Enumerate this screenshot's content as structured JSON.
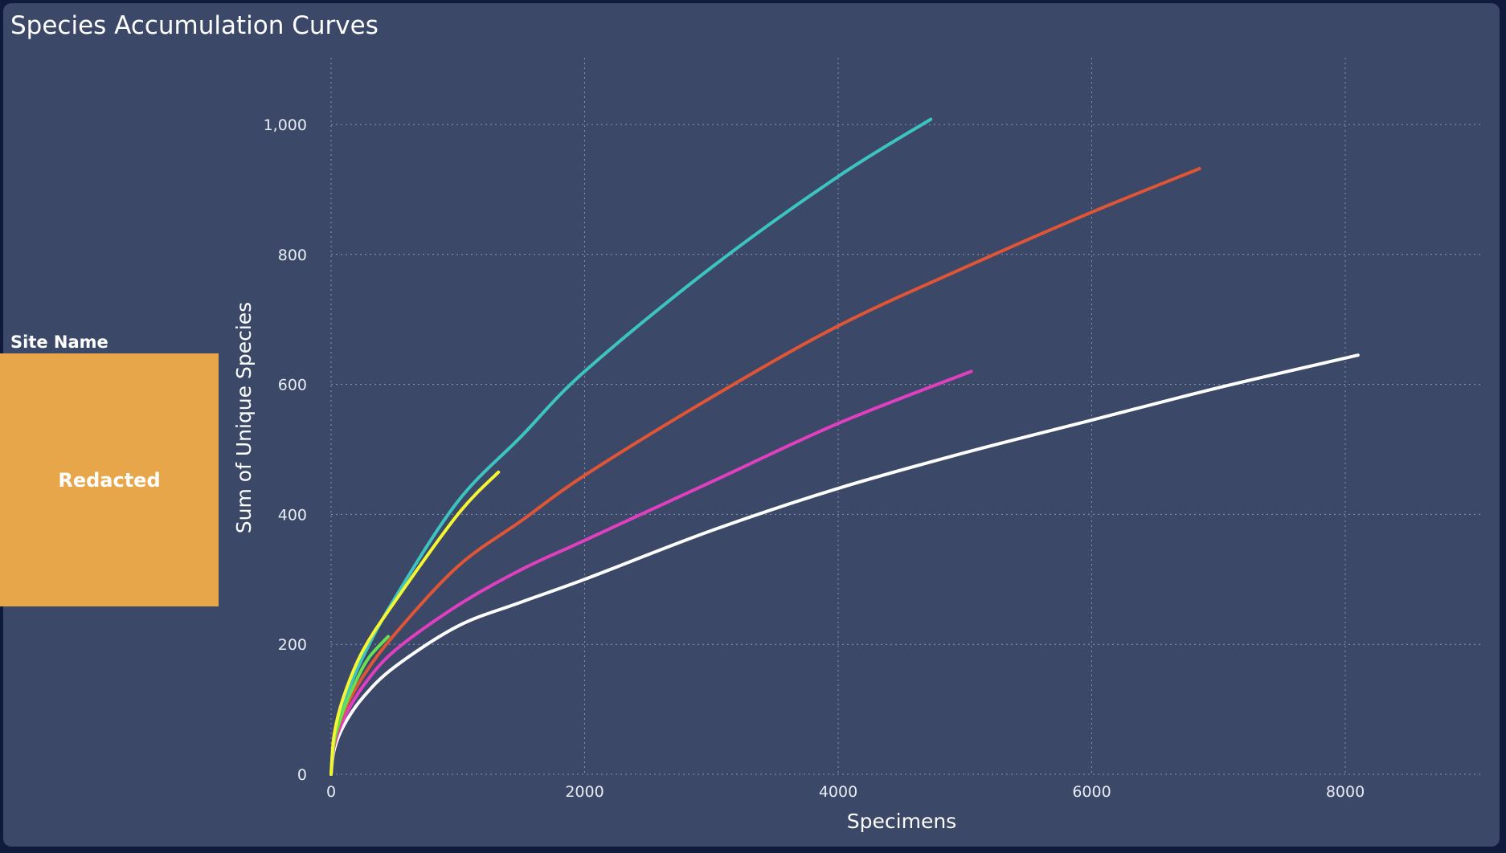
{
  "title": "Species Accumulation Curves",
  "slicer": {
    "label": "Site Name",
    "value": "Redacted",
    "color": "#e8a64b"
  },
  "chart_data": {
    "type": "line",
    "xlabel": "Specimens",
    "ylabel": "Sum of Unique Species",
    "xlim": [
      0,
      9000
    ],
    "ylim": [
      0,
      1100
    ],
    "xticks": [
      0,
      2000,
      4000,
      6000,
      8000
    ],
    "yticks": [
      0,
      200,
      400,
      600,
      800,
      1000
    ],
    "ytick_labels": [
      "0",
      "200",
      "400",
      "600",
      "800",
      "1,000"
    ],
    "grid": true,
    "series": [
      {
        "color": "#ffffff",
        "x": [
          0,
          25,
          100,
          250,
          500,
          1000,
          1500,
          2000,
          3000,
          4000,
          5000,
          6000,
          7000,
          8100
        ],
        "y": [
          0,
          38,
          75,
          118,
          165,
          228,
          265,
          300,
          375,
          440,
          495,
          545,
          595,
          645
        ]
      },
      {
        "color": "#e040c0",
        "x": [
          0,
          25,
          100,
          250,
          500,
          1000,
          1500,
          2000,
          3000,
          4000,
          5050
        ],
        "y": [
          0,
          45,
          85,
          135,
          190,
          260,
          315,
          360,
          450,
          540,
          620
        ]
      },
      {
        "color": "#e05535",
        "x": [
          0,
          25,
          100,
          250,
          500,
          1000,
          1500,
          2000,
          3000,
          4000,
          5000,
          6000,
          6850
        ],
        "y": [
          0,
          48,
          95,
          150,
          215,
          320,
          390,
          460,
          580,
          690,
          780,
          865,
          932
        ]
      },
      {
        "color": "#3cc4c0",
        "x": [
          0,
          25,
          100,
          250,
          500,
          1000,
          1500,
          2000,
          3000,
          4000,
          4730
        ],
        "y": [
          0,
          55,
          110,
          180,
          270,
          420,
          520,
          620,
          780,
          920,
          1008
        ]
      },
      {
        "color": "#66e050",
        "x": [
          0,
          25,
          100,
          200,
          300,
          450
        ],
        "y": [
          0,
          52,
          100,
          145,
          180,
          212
        ]
      },
      {
        "color": "#f5f532",
        "x": [
          0,
          25,
          100,
          250,
          500,
          1000,
          1320
        ],
        "y": [
          0,
          62,
          120,
          190,
          265,
          400,
          465
        ]
      }
    ]
  }
}
